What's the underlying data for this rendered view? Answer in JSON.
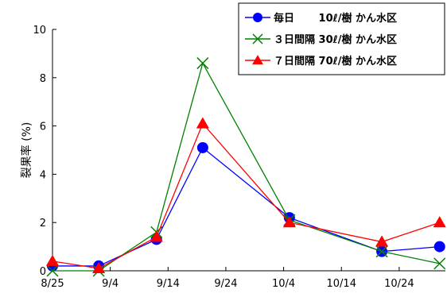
{
  "chart_data": {
    "type": "line",
    "ylabel": "裂果率 (%)",
    "xlabel": "",
    "ylim": [
      0,
      10
    ],
    "y_ticks": [
      "0",
      "2",
      "4",
      "6",
      "8",
      "10"
    ],
    "x_ticks": [
      "8/25",
      "9/4",
      "9/14",
      "9/24",
      "10/4",
      "10/14",
      "10/24"
    ],
    "x_tick_dates": [
      "2000-08-25",
      "2000-09-04",
      "2000-09-14",
      "2000-09-24",
      "2000-10-04",
      "2000-10-14",
      "2000-10-24"
    ],
    "xlim": [
      "2000-08-25",
      "2000-11-01"
    ],
    "x": [
      "2000-08-25",
      "2000-09-02",
      "2000-09-12",
      "2000-09-20",
      "2000-10-05",
      "2000-10-21",
      "2000-10-31"
    ],
    "series": [
      {
        "name": "毎日　　 10ℓ/樹 かん水区",
        "color": "#0000ff",
        "marker": "circle",
        "values": [
          0.2,
          0.2,
          1.3,
          5.1,
          2.2,
          0.8,
          1.0
        ]
      },
      {
        "name": "３日間隔 30ℓ/樹 かん水区",
        "color": "#008000",
        "marker": "x",
        "values": [
          0.0,
          0.0,
          1.6,
          8.6,
          2.1,
          0.8,
          0.3
        ]
      },
      {
        "name": "７日間隔 70ℓ/樹 かん水区",
        "color": "#ff0000",
        "marker": "triangle",
        "values": [
          0.4,
          0.1,
          1.4,
          6.1,
          2.0,
          1.2,
          2.0
        ]
      }
    ],
    "legend_position": "top-right",
    "grid": false
  }
}
